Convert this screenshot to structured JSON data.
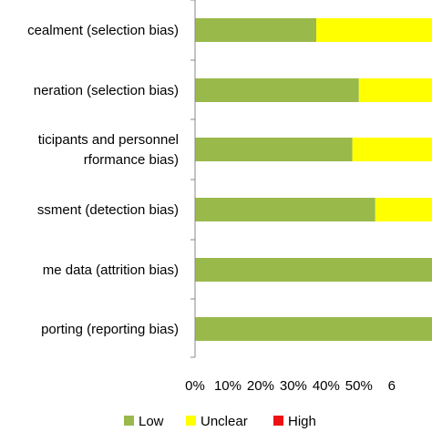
{
  "chart_data": {
    "type": "bar",
    "stacked": true,
    "orientation": "horizontal",
    "categories": [
      [
        "cealment (selection bias)"
      ],
      [
        "neration (selection bias)"
      ],
      [
        "ticipants and personnel",
        "rformance bias)"
      ],
      [
        "ssment (detection bias)"
      ],
      [
        "me data (attrition bias)"
      ],
      [
        "porting (reporting bias)"
      ]
    ],
    "series": [
      {
        "name": "Low",
        "color": "#99b94b",
        "values": [
          37,
          50,
          48,
          55,
          100,
          100
        ]
      },
      {
        "name": "Unclear",
        "color": "#ffff00",
        "values": [
          63,
          50,
          52,
          45,
          0,
          0
        ]
      },
      {
        "name": "High",
        "color": "#ee1111",
        "values": [
          0,
          0,
          0,
          0,
          0,
          0
        ]
      }
    ],
    "x_ticks": [
      "0%",
      "10%",
      "20%",
      "30%",
      "40%",
      "50%",
      "6"
    ],
    "xlim": [
      0,
      100
    ],
    "grid": false,
    "legend_position": "bottom"
  }
}
